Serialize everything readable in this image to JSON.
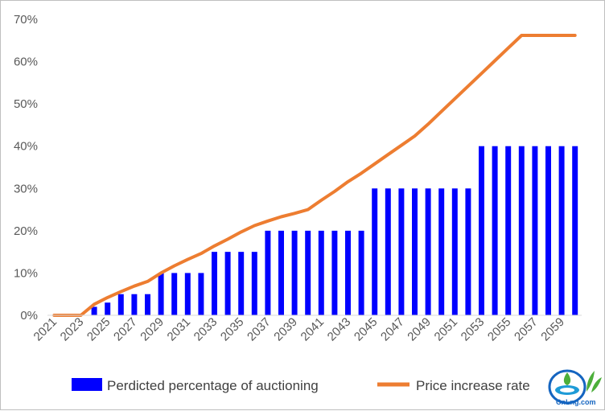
{
  "chart_data": {
    "type": "bar",
    "x": [
      2021,
      2022,
      2023,
      2024,
      2025,
      2026,
      2027,
      2028,
      2029,
      2030,
      2031,
      2032,
      2033,
      2034,
      2035,
      2036,
      2037,
      2038,
      2039,
      2040,
      2041,
      2042,
      2043,
      2044,
      2045,
      2046,
      2047,
      2048,
      2049,
      2050,
      2051,
      2052,
      2053,
      2054,
      2055,
      2056,
      2057,
      2058,
      2059,
      2060
    ],
    "x_tick_labels": [
      "2021",
      "2023",
      "2025",
      "2027",
      "2029",
      "2031",
      "2033",
      "2035",
      "2037",
      "2039",
      "2041",
      "2043",
      "2045",
      "2047",
      "2049",
      "2051",
      "2053",
      "2055",
      "2057",
      "2059"
    ],
    "y_tick_labels": [
      "0%",
      "10%",
      "20%",
      "30%",
      "40%",
      "50%",
      "60%",
      "70%"
    ],
    "ylim": [
      0,
      70
    ],
    "title": "",
    "xlabel": "",
    "ylabel": "",
    "grid": false,
    "legend_position": "bottom",
    "series": [
      {
        "name": "Perdicted percentage of auctioning",
        "kind": "bar",
        "color": "#0000ff",
        "values": [
          0,
          0,
          0,
          2,
          3,
          5,
          5,
          5,
          10,
          10,
          10,
          10,
          15,
          15,
          15,
          15,
          20,
          20,
          20,
          20,
          20,
          20,
          20,
          20,
          30,
          30,
          30,
          30,
          30,
          30,
          30,
          30,
          40,
          40,
          40,
          40,
          40,
          40,
          40,
          40
        ]
      },
      {
        "name": "Price increase rate",
        "kind": "line",
        "color": "#ed7d31",
        "values": [
          0,
          0,
          0,
          2.6,
          4.2,
          5.6,
          6.9,
          8,
          10,
          11.7,
          13.2,
          14.6,
          16.4,
          18,
          19.7,
          21.2,
          22.3,
          23.3,
          24.1,
          25,
          27.2,
          29.3,
          31.6,
          33.6,
          35.8,
          38,
          40.2,
          42.4,
          45.2,
          48.2,
          51.2,
          54.2,
          57.2,
          60.2,
          63.2,
          66.2,
          66.2,
          66.2,
          66.2,
          66.2
        ]
      }
    ]
  },
  "logo": {
    "text": "CnLng.com",
    "colors": {
      "green": "#4caf3a",
      "blue": "#1565c0",
      "teal": "#1e9bd7"
    }
  }
}
